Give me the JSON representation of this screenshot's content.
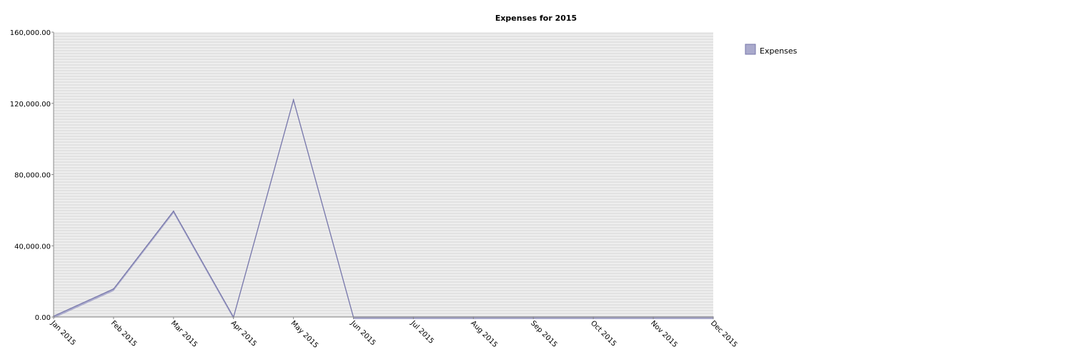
{
  "chart_data": {
    "type": "area",
    "title": "Expenses for 2015",
    "xlabel": "",
    "ylabel": "",
    "categories": [
      "Jan 2015",
      "Feb 2015",
      "Mar 2015",
      "Apr 2015",
      "May 2015",
      "Jun 2015",
      "Jul 2015",
      "Aug 2015",
      "Sep 2015",
      "Oct 2015",
      "Nov 2015",
      "Dec 2015"
    ],
    "series": [
      {
        "name": "Expenses",
        "values": [
          500,
          15800,
          59500,
          0,
          122000,
          0,
          0,
          0,
          0,
          0,
          0,
          0
        ]
      }
    ],
    "ylim": [
      0,
      160000
    ],
    "yticks": [
      0,
      40000,
      80000,
      120000,
      160000
    ],
    "ytick_labels": [
      "0.00",
      "40,000.00",
      "80,000.00",
      "120,000.00",
      "160,000.00"
    ],
    "grid": true,
    "legend_position": "right",
    "colors": {
      "series_fill": "#aaaacc",
      "series_edge": "#7777aa",
      "plot_background": "#eeeeee",
      "gridline": "#d6d6d6",
      "axis": "#888888"
    }
  }
}
